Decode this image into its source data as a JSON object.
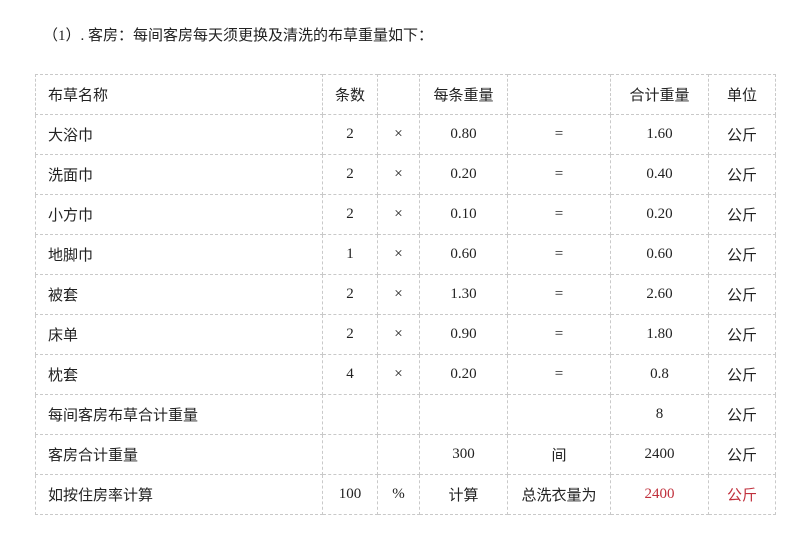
{
  "title": "（1）. 客房：每间客房每天须更换及清洗的布草重量如下：",
  "colors": {
    "highlight_red": "#c0303c",
    "border": "#c9c9c9",
    "text": "#222222"
  },
  "table": {
    "headers": [
      "布草名称",
      "条数",
      "",
      "每条重量",
      "",
      "合计重量",
      "单位"
    ],
    "rows": [
      [
        "大浴巾",
        "2",
        "×",
        "0.80",
        "=",
        "1.60",
        "公斤"
      ],
      [
        "洗面巾",
        "2",
        "×",
        "0.20",
        "=",
        "0.40",
        "公斤"
      ],
      [
        "小方巾",
        "2",
        "×",
        "0.10",
        "=",
        "0.20",
        "公斤"
      ],
      [
        "地脚巾",
        "1",
        "×",
        "0.60",
        "=",
        "0.60",
        "公斤"
      ],
      [
        "被套",
        "2",
        "×",
        "1.30",
        "=",
        "2.60",
        "公斤"
      ],
      [
        "床单",
        "2",
        "×",
        "0.90",
        "=",
        "1.80",
        "公斤"
      ],
      [
        "枕套",
        "4",
        "×",
        "0.20",
        "=",
        "0.8",
        "公斤"
      ],
      [
        "每间客房布草合计重量",
        "",
        "",
        "",
        "",
        "8",
        "公斤"
      ],
      [
        "客房合计重量",
        "",
        "",
        "300",
        "间",
        "2400",
        "公斤"
      ],
      [
        "如按住房率计算",
        "100",
        "%",
        "计算",
        "总洗衣量为",
        "2400",
        "公斤"
      ]
    ]
  }
}
